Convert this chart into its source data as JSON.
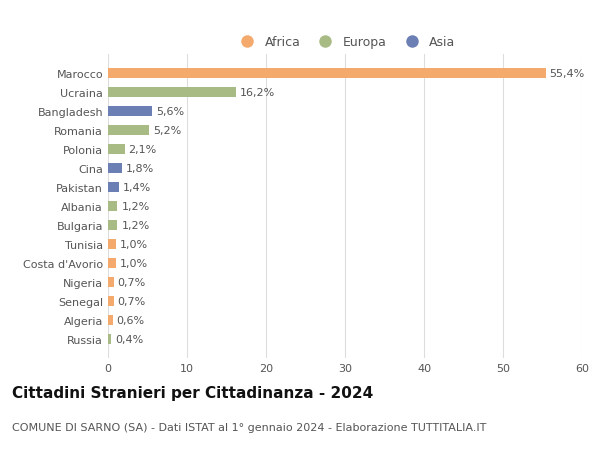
{
  "countries": [
    "Marocco",
    "Ucraina",
    "Bangladesh",
    "Romania",
    "Polonia",
    "Cina",
    "Pakistan",
    "Albania",
    "Bulgaria",
    "Tunisia",
    "Costa d'Avorio",
    "Nigeria",
    "Senegal",
    "Algeria",
    "Russia"
  ],
  "values": [
    55.4,
    16.2,
    5.6,
    5.2,
    2.1,
    1.8,
    1.4,
    1.2,
    1.2,
    1.0,
    1.0,
    0.7,
    0.7,
    0.6,
    0.4
  ],
  "labels": [
    "55,4%",
    "16,2%",
    "5,6%",
    "5,2%",
    "2,1%",
    "1,8%",
    "1,4%",
    "1,2%",
    "1,2%",
    "1,0%",
    "1,0%",
    "0,7%",
    "0,7%",
    "0,6%",
    "0,4%"
  ],
  "continents": [
    "Africa",
    "Europa",
    "Asia",
    "Europa",
    "Europa",
    "Asia",
    "Asia",
    "Europa",
    "Europa",
    "Africa",
    "Africa",
    "Africa",
    "Africa",
    "Africa",
    "Europa"
  ],
  "continent_colors": {
    "Africa": "#F4A96D",
    "Europa": "#A8BB85",
    "Asia": "#6B7FB5"
  },
  "legend_order": [
    "Africa",
    "Europa",
    "Asia"
  ],
  "title": "Cittadini Stranieri per Cittadinanza - 2024",
  "subtitle": "COMUNE DI SARNO (SA) - Dati ISTAT al 1° gennaio 2024 - Elaborazione TUTTITALIA.IT",
  "xlim": [
    0,
    60
  ],
  "xticks": [
    0,
    10,
    20,
    30,
    40,
    50,
    60
  ],
  "background_color": "#ffffff",
  "grid_color": "#dddddd",
  "bar_height": 0.55,
  "title_fontsize": 11,
  "subtitle_fontsize": 8,
  "label_fontsize": 8,
  "tick_fontsize": 8,
  "legend_fontsize": 9
}
